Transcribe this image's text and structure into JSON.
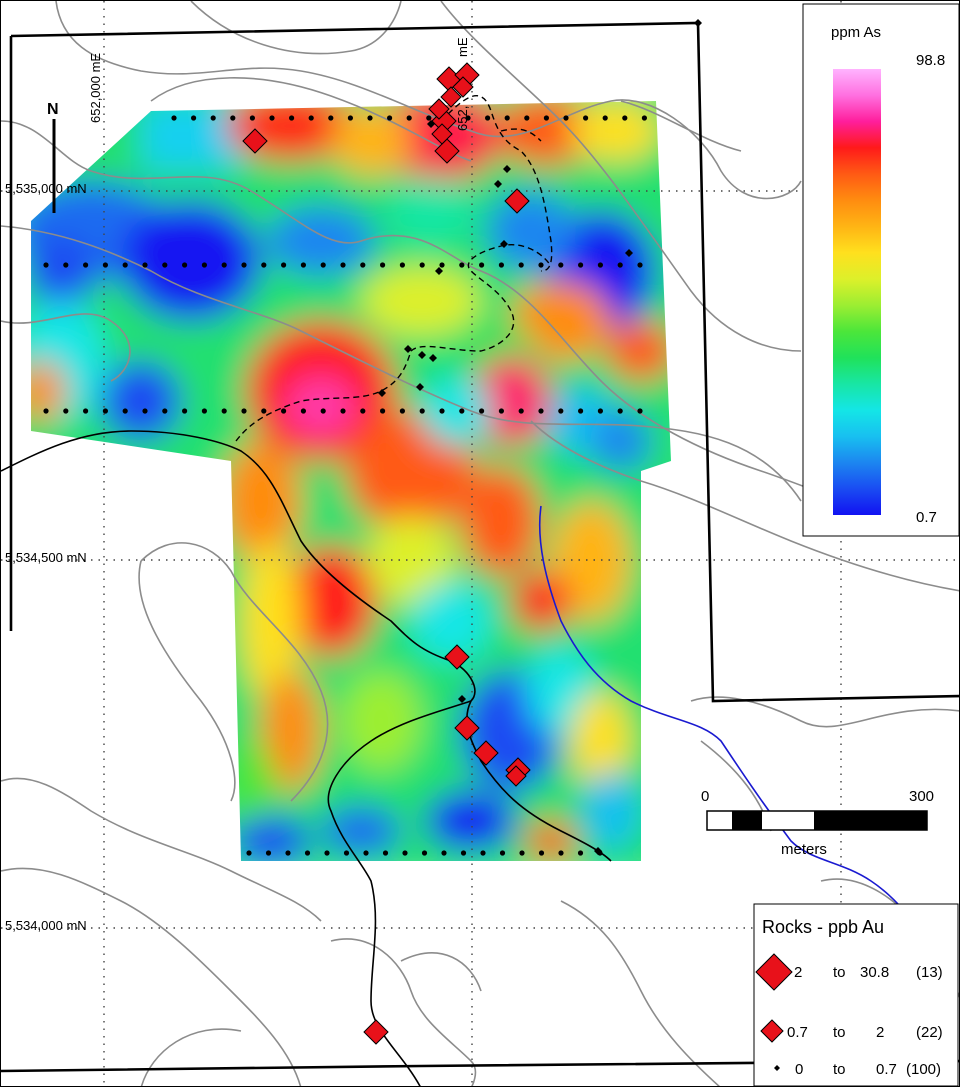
{
  "map": {
    "grid_labels": {
      "easting_1": "652,000 mE",
      "easting_2": "652,",
      "easting_2_tail": "mE",
      "northing_1": "5,535,000 mN",
      "northing_2": "5,534,500 mN",
      "northing_3": "5,534,000 mN"
    },
    "north_arrow_label": "N",
    "colors": {
      "rock_marker": "#e8111a",
      "soil_point": "#000000",
      "stream": "#1a1ad0",
      "contour": "#8c8c8c"
    }
  },
  "color_scale": {
    "title": "ppm As",
    "max_label": "98.8",
    "min_label": "0.7",
    "colors": [
      "#ffb3ff",
      "#ff70e0",
      "#ff1e9c",
      "#ff1a1a",
      "#ff5a14",
      "#ff8c10",
      "#ffb414",
      "#ffe01e",
      "#ddf02a",
      "#9cee32",
      "#4ce63a",
      "#20e25a",
      "#18e6a4",
      "#14e6e6",
      "#18c0f0",
      "#1c86f0",
      "#1a4cf2",
      "#1212f2"
    ]
  },
  "scale_bar": {
    "min_label": "0",
    "max_label": "300",
    "unit_label": "meters"
  },
  "rocks_legend": {
    "title": "Rocks - ppb Au",
    "classes": [
      {
        "from": "2",
        "to_word": "to",
        "to": "30.8",
        "count": "(13)",
        "symbol": "large-diamond"
      },
      {
        "from": "0.7",
        "to_word": "to",
        "to": "2",
        "count": "(22)",
        "symbol": "small-diamond"
      },
      {
        "from": "0",
        "to_word": "to",
        "to": "0.7",
        "count": "(100)",
        "symbol": "dot"
      }
    ]
  }
}
